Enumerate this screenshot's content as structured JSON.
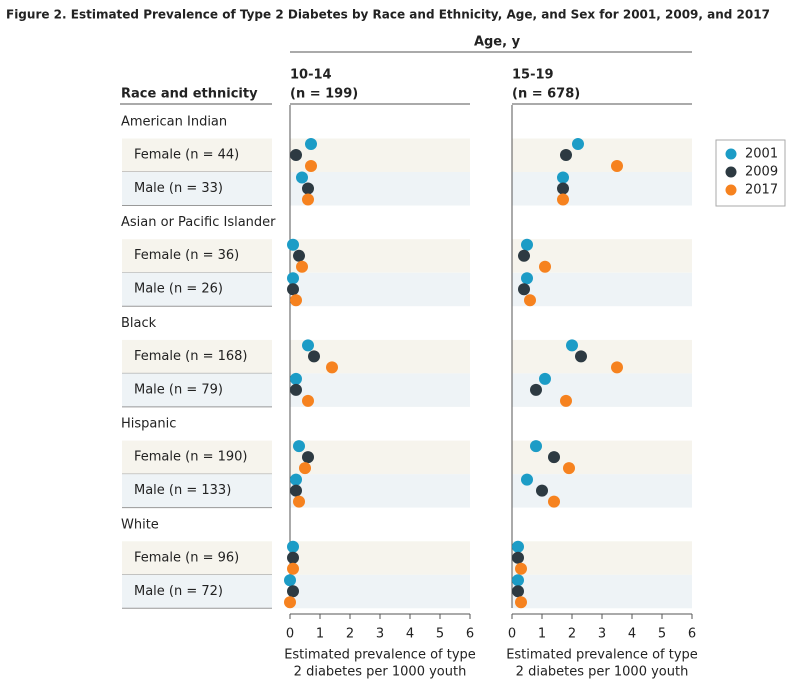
{
  "chart_data": {
    "type": "dot",
    "title": "Figure 2.  Estimated Prevalence of Type 2 Diabetes by Race and Ethnicity, Age, and Sex for 2001, 2009, and 2017",
    "column_header": "Age, y",
    "category_header": "Race and ethnicity",
    "groups": [
      {
        "name": "American Indian",
        "categories": [
          "Female (n = 44)",
          "Male (n = 33)"
        ]
      },
      {
        "name": "Asian or Pacific Islander",
        "categories": [
          "Female (n = 36)",
          "Male (n = 26)"
        ]
      },
      {
        "name": "Black",
        "categories": [
          "Female (n = 168)",
          "Male (n = 79)"
        ]
      },
      {
        "name": "Hispanic",
        "categories": [
          "Female (n = 190)",
          "Male (n = 133)"
        ]
      },
      {
        "name": "White",
        "categories": [
          "Female (n = 96)",
          "Male (n = 72)"
        ]
      }
    ],
    "series": [
      {
        "name": "2001",
        "color": "#1c9cc6"
      },
      {
        "name": "2009",
        "color": "#2d3a42"
      },
      {
        "name": "2017",
        "color": "#f6821f"
      }
    ],
    "legend": "right",
    "panels": [
      {
        "title": "10-14",
        "subtitle": "(n = 199)",
        "xlabel": [
          "Estimated prevalence of type",
          "2 diabetes per 1000 youth"
        ],
        "xlim": [
          0,
          6
        ],
        "xticks": [
          0,
          1,
          2,
          3,
          4,
          5,
          6
        ],
        "series": [
          {
            "values": [
              0.7,
              0.4,
              0.1,
              0.1,
              0.6,
              0.2,
              0.3,
              0.2,
              0.1,
              0.0
            ]
          },
          {
            "values": [
              0.2,
              0.6,
              0.3,
              0.1,
              0.8,
              0.2,
              0.6,
              0.2,
              0.1,
              0.1
            ]
          },
          {
            "values": [
              0.7,
              0.6,
              0.4,
              0.2,
              1.4,
              0.6,
              0.5,
              0.3,
              0.1,
              0.0
            ]
          }
        ]
      },
      {
        "title": "15-19",
        "subtitle": "(n = 678)",
        "xlabel": [
          "Estimated prevalence of type",
          "2 diabetes per 1000 youth"
        ],
        "xlim": [
          0,
          6
        ],
        "xticks": [
          0,
          1,
          2,
          3,
          4,
          5,
          6
        ],
        "series": [
          {
            "values": [
              2.2,
              1.7,
              0.5,
              0.5,
              2.0,
              1.1,
              0.8,
              0.5,
              0.2,
              0.2
            ]
          },
          {
            "values": [
              1.8,
              1.7,
              0.4,
              0.4,
              2.3,
              0.8,
              1.4,
              1.0,
              0.2,
              0.2
            ]
          },
          {
            "values": [
              3.5,
              1.7,
              1.1,
              0.6,
              3.5,
              1.8,
              1.9,
              1.4,
              0.3,
              0.3
            ]
          }
        ]
      }
    ]
  }
}
